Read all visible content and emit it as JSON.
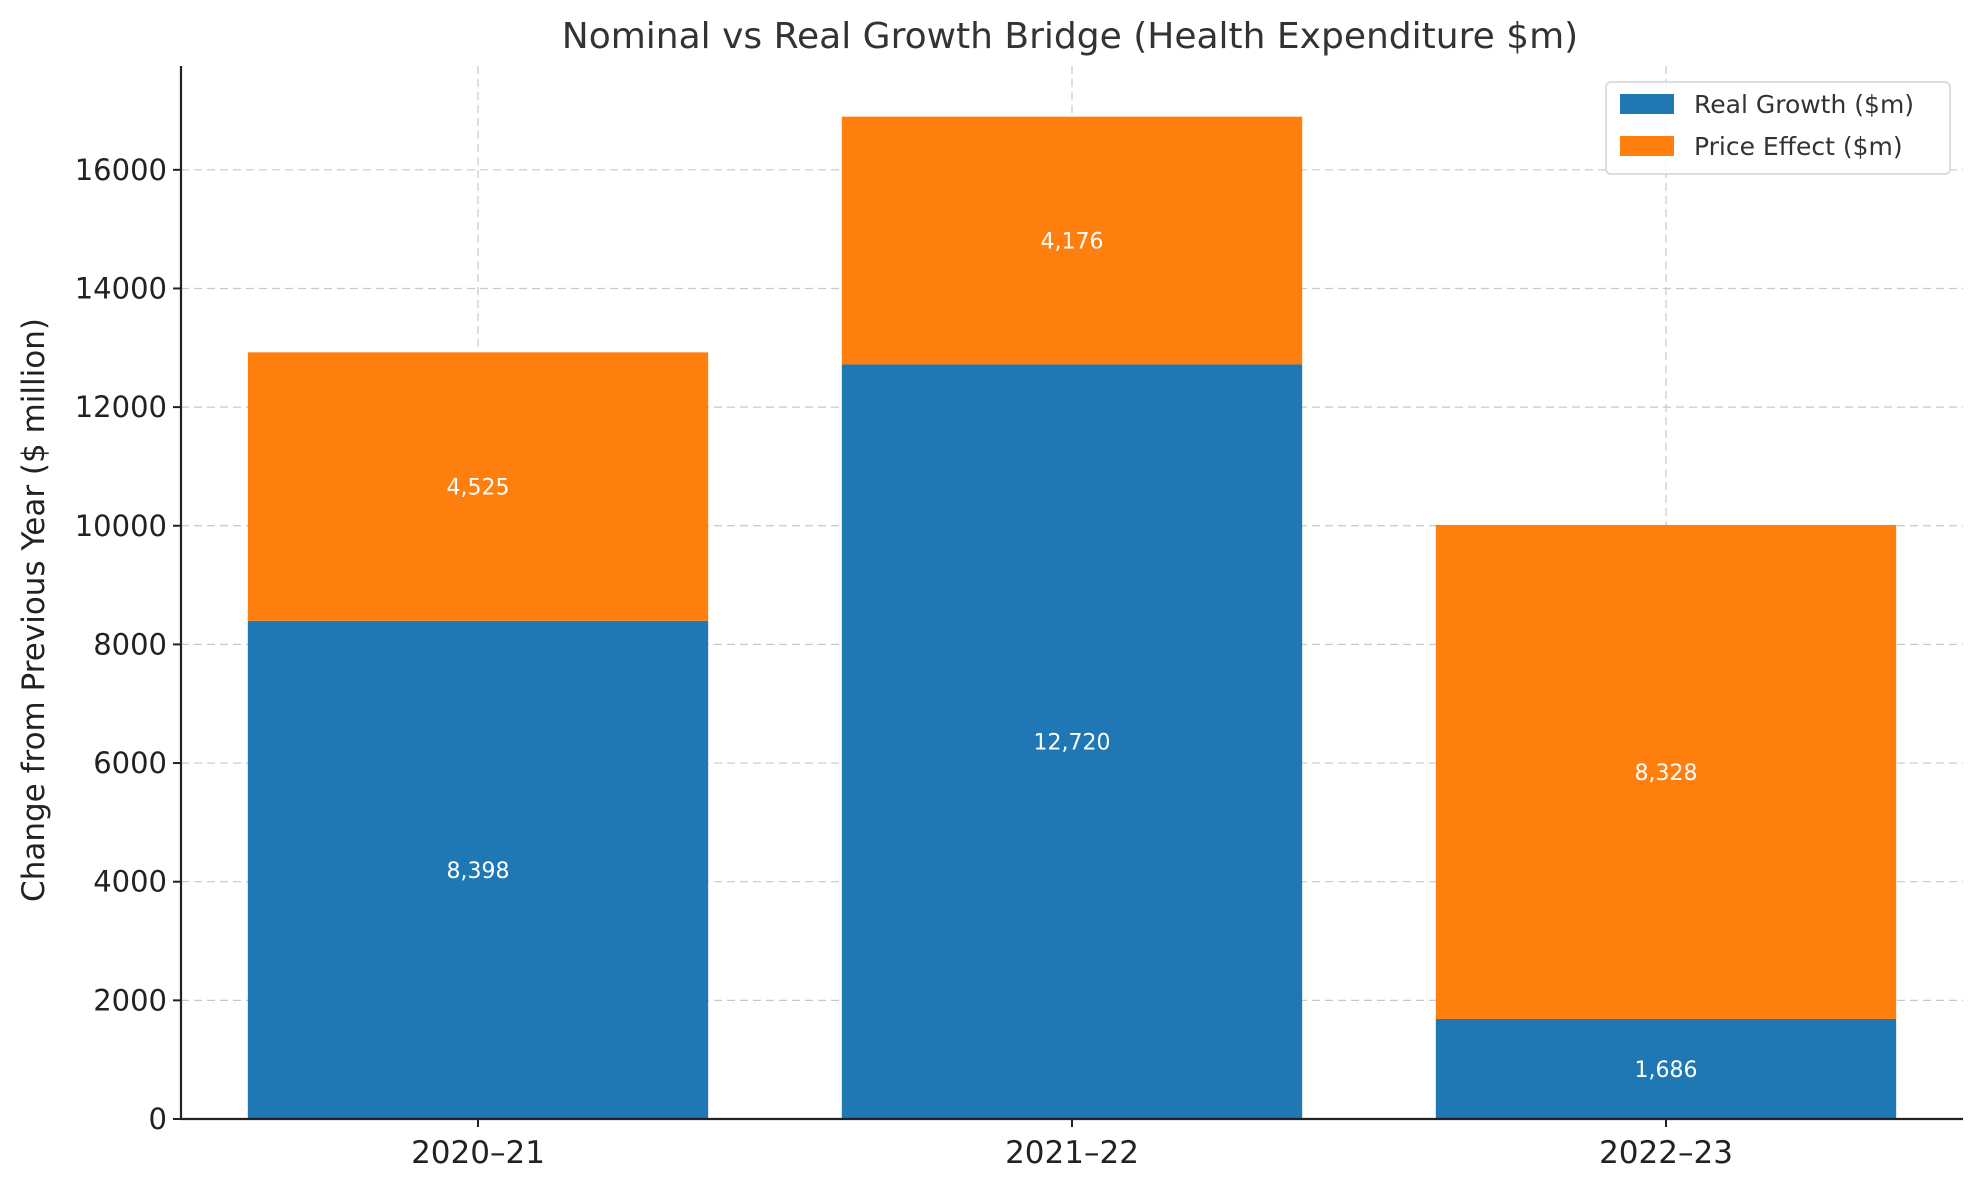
{
  "chart_data": {
    "type": "bar",
    "stacked": true,
    "title": "Nominal vs Real Growth Bridge (Health Expenditure $m)",
    "xlabel": "",
    "ylabel": "Change from Previous Year ($ million)",
    "categories": [
      "2020–21",
      "2021–22",
      "2022–23"
    ],
    "series": [
      {
        "name": "Real Growth ($m)",
        "values": [
          8398,
          12720,
          1686
        ],
        "labels": [
          "8,398",
          "12,720",
          "1,686"
        ],
        "color": "#1f77b4"
      },
      {
        "name": "Price Effect ($m)",
        "values": [
          4525,
          4176,
          8328
        ],
        "labels": [
          "4,525",
          "4,176",
          "8,328"
        ],
        "color": "#ff7f0e"
      }
    ],
    "ylim": [
      0,
      17750
    ],
    "yticks": [
      0,
      2000,
      4000,
      6000,
      8000,
      10000,
      12000,
      14000,
      16000
    ],
    "grid": true,
    "legend_position": "top-right"
  }
}
